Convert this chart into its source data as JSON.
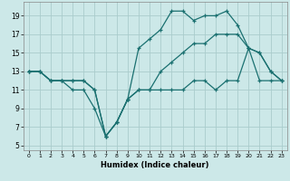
{
  "xlabel": "Humidex (Indice chaleur)",
  "background_color": "#cce8e8",
  "grid_color": "#aacccc",
  "line_color": "#1a7070",
  "xlim": [
    -0.5,
    23.5
  ],
  "ylim": [
    4.5,
    20.5
  ],
  "xticks": [
    0,
    1,
    2,
    3,
    4,
    5,
    6,
    7,
    8,
    9,
    10,
    11,
    12,
    13,
    14,
    15,
    16,
    17,
    18,
    19,
    20,
    21,
    22,
    23
  ],
  "yticks": [
    5,
    7,
    9,
    11,
    13,
    15,
    17,
    19
  ],
  "line1_x": [
    0,
    1,
    2,
    3,
    4,
    5,
    6,
    7,
    8,
    9,
    10,
    11,
    12,
    13,
    14,
    15,
    16,
    17,
    18,
    19,
    20,
    21,
    22,
    23
  ],
  "line1_y": [
    13,
    13,
    12,
    12,
    11,
    11,
    9,
    6,
    7.5,
    10,
    11,
    11,
    11,
    11,
    11,
    12,
    12,
    11,
    12,
    12,
    15.5,
    12,
    12,
    12
  ],
  "line2_x": [
    0,
    1,
    2,
    3,
    4,
    5,
    6,
    7,
    8,
    9,
    10,
    11,
    12,
    13,
    14,
    15,
    16,
    17,
    18,
    19,
    20,
    21,
    22,
    23
  ],
  "line2_y": [
    13,
    13,
    12,
    12,
    12,
    12,
    11,
    6,
    7.5,
    10,
    11,
    11,
    13,
    14,
    15,
    16,
    16,
    17,
    17,
    17,
    15.5,
    15,
    13,
    12
  ],
  "line3_x": [
    0,
    1,
    2,
    3,
    4,
    5,
    6,
    7,
    8,
    9,
    10,
    11,
    12,
    13,
    14,
    15,
    16,
    17,
    18,
    19,
    20,
    21,
    22,
    23
  ],
  "line3_y": [
    13,
    13,
    12,
    12,
    12,
    12,
    11,
    6,
    7.5,
    10,
    15.5,
    16.5,
    17.5,
    19.5,
    19.5,
    18.5,
    19,
    19,
    19.5,
    18,
    15.5,
    15,
    13,
    12
  ]
}
